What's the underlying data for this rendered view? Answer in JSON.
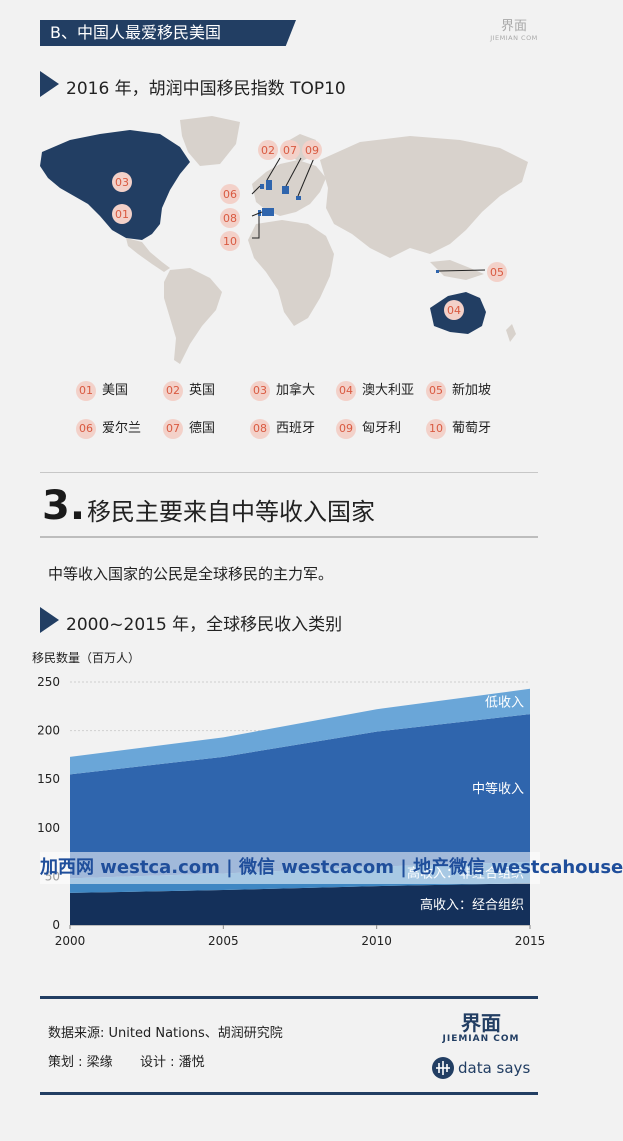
{
  "header": {
    "banner_title": "B、中国人最爱移民美国",
    "logo_cn": "界面",
    "logo_en": "JIEMIAN COM"
  },
  "section1": {
    "title": "2016 年，胡润中国移民指数 TOP10",
    "map_markers": [
      "03",
      "01",
      "02",
      "07",
      "09",
      "06",
      "08",
      "10",
      "05",
      "04"
    ],
    "legend": [
      {
        "num": "01",
        "name": "美国"
      },
      {
        "num": "02",
        "name": "英国"
      },
      {
        "num": "03",
        "name": "加拿大"
      },
      {
        "num": "04",
        "name": "澳大利亚"
      },
      {
        "num": "05",
        "name": "新加坡"
      },
      {
        "num": "06",
        "name": "爱尔兰"
      },
      {
        "num": "07",
        "name": "德国"
      },
      {
        "num": "08",
        "name": "西班牙"
      },
      {
        "num": "09",
        "name": "匈牙利"
      },
      {
        "num": "10",
        "name": "葡萄牙"
      }
    ]
  },
  "section3": {
    "number": "3.",
    "title": "移民主要来自中等收入国家",
    "intro": "中等收入国家的公民是全球移民的主力军。",
    "chart_title": "2000~2015 年，全球移民收入类别"
  },
  "chart_data": {
    "type": "area",
    "title": "2000~2015 年，全球移民收入类别",
    "ylabel": "移民数量（百万人）",
    "xlabel": "",
    "x": [
      2000,
      2005,
      2010,
      2015
    ],
    "ylim": [
      0,
      250
    ],
    "yticks": [
      0,
      50,
      100,
      150,
      200,
      250
    ],
    "stacked": true,
    "grid": true,
    "series": [
      {
        "name": "高收入：经合组织",
        "values": [
          33,
          36,
          40,
          43
        ],
        "color": "#14305a"
      },
      {
        "name": "高收入：非经合组织",
        "values": [
          15,
          17,
          20,
          22
        ],
        "color": "#3f87c3"
      },
      {
        "name": "中等收入",
        "values": [
          107,
          120,
          139,
          152
        ],
        "color": "#2f65ad"
      },
      {
        "name": "低收入",
        "values": [
          18,
          20,
          23,
          26
        ],
        "color": "#6aa6d8"
      }
    ]
  },
  "watermark": "加西网 westca.com | 微信 westcacom | 地产微信 westcahouse",
  "footer": {
    "source": "数据来源: United Nations、胡润研究院",
    "credits_plan": "策划 : 梁缘",
    "credits_design": "设计 : 潘悦",
    "logo_cn": "界面",
    "logo_en": "JIEMIAN COM",
    "brand": "data says"
  },
  "colors": {
    "navy": "#223e63",
    "marker_fill": "#f3d1c9",
    "marker_text": "#d95a41",
    "land": "#d8d2cc",
    "highlight": "#2f65ad"
  }
}
